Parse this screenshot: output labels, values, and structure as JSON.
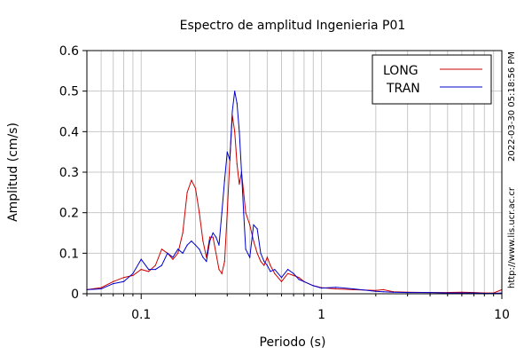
{
  "chart_data": {
    "type": "line",
    "title": "Espectro de amplitud Ingenieria P01",
    "xlabel": "Periodo (s)",
    "ylabel": "Amplitud (cm/s)",
    "x_scale": "log",
    "xlim": [
      0.05,
      10
    ],
    "ylim": [
      0,
      0.6
    ],
    "x_ticks": [
      0.1,
      1,
      10
    ],
    "x_tick_labels": [
      "0.1",
      "1",
      "10"
    ],
    "y_ticks": [
      0,
      0.1,
      0.2,
      0.3,
      0.4,
      0.5,
      0.6
    ],
    "y_tick_labels": [
      "0",
      "0.1",
      "0.2",
      "0.3",
      "0.4",
      "0.5",
      "0.6"
    ],
    "grid": true,
    "legend_position": "top-right",
    "timestamp": "2022-03-30 05:18:56 PM",
    "url": "http://www.lis.ucr.ac.cr",
    "series": [
      {
        "name": "LONG",
        "color": "#cc0000",
        "x": [
          0.05,
          0.06,
          0.07,
          0.08,
          0.09,
          0.1,
          0.11,
          0.12,
          0.13,
          0.14,
          0.15,
          0.16,
          0.17,
          0.18,
          0.19,
          0.2,
          0.21,
          0.22,
          0.23,
          0.24,
          0.25,
          0.26,
          0.27,
          0.28,
          0.29,
          0.3,
          0.31,
          0.32,
          0.33,
          0.34,
          0.35,
          0.36,
          0.37,
          0.38,
          0.4,
          0.42,
          0.44,
          0.46,
          0.48,
          0.5,
          0.52,
          0.55,
          0.6,
          0.65,
          0.7,
          0.75,
          0.8,
          0.9,
          1.0,
          1.2,
          1.5,
          2.0,
          2.2,
          2.5,
          3.0,
          4.0,
          5.0,
          6.0,
          7.0,
          8.0,
          9.0,
          10.0
        ],
        "y": [
          0.01,
          0.015,
          0.03,
          0.04,
          0.045,
          0.06,
          0.055,
          0.07,
          0.11,
          0.1,
          0.085,
          0.1,
          0.15,
          0.25,
          0.28,
          0.26,
          0.2,
          0.13,
          0.09,
          0.14,
          0.14,
          0.1,
          0.06,
          0.05,
          0.08,
          0.2,
          0.33,
          0.44,
          0.4,
          0.32,
          0.27,
          0.3,
          0.25,
          0.2,
          0.17,
          0.13,
          0.1,
          0.08,
          0.07,
          0.09,
          0.07,
          0.05,
          0.03,
          0.05,
          0.045,
          0.04,
          0.03,
          0.02,
          0.015,
          0.012,
          0.01,
          0.008,
          0.01,
          0.005,
          0.004,
          0.003,
          0.003,
          0.004,
          0.003,
          0.002,
          0.002,
          0.01
        ]
      },
      {
        "name": "TRAN",
        "color": "#0000cc",
        "x": [
          0.05,
          0.06,
          0.07,
          0.08,
          0.09,
          0.1,
          0.11,
          0.12,
          0.13,
          0.14,
          0.15,
          0.16,
          0.17,
          0.18,
          0.19,
          0.2,
          0.21,
          0.22,
          0.23,
          0.24,
          0.25,
          0.26,
          0.27,
          0.28,
          0.29,
          0.3,
          0.31,
          0.32,
          0.33,
          0.34,
          0.35,
          0.36,
          0.37,
          0.38,
          0.4,
          0.42,
          0.44,
          0.46,
          0.48,
          0.5,
          0.52,
          0.55,
          0.6,
          0.65,
          0.7,
          0.75,
          0.8,
          0.9,
          1.0,
          1.2,
          1.5,
          2.0,
          2.2,
          2.5,
          3.0,
          4.0,
          5.0,
          6.0,
          7.0,
          8.0,
          9.0,
          10.0
        ],
        "y": [
          0.01,
          0.012,
          0.025,
          0.03,
          0.05,
          0.085,
          0.06,
          0.06,
          0.07,
          0.1,
          0.09,
          0.11,
          0.1,
          0.12,
          0.13,
          0.12,
          0.11,
          0.09,
          0.08,
          0.13,
          0.15,
          0.14,
          0.12,
          0.2,
          0.28,
          0.35,
          0.33,
          0.45,
          0.5,
          0.47,
          0.4,
          0.3,
          0.2,
          0.11,
          0.09,
          0.17,
          0.16,
          0.1,
          0.08,
          0.07,
          0.055,
          0.06,
          0.04,
          0.06,
          0.05,
          0.035,
          0.03,
          0.02,
          0.014,
          0.016,
          0.012,
          0.006,
          0.005,
          0.004,
          0.003,
          0.003,
          0.002,
          0.002,
          0.002,
          0.001,
          0.001,
          0.002
        ]
      }
    ]
  }
}
